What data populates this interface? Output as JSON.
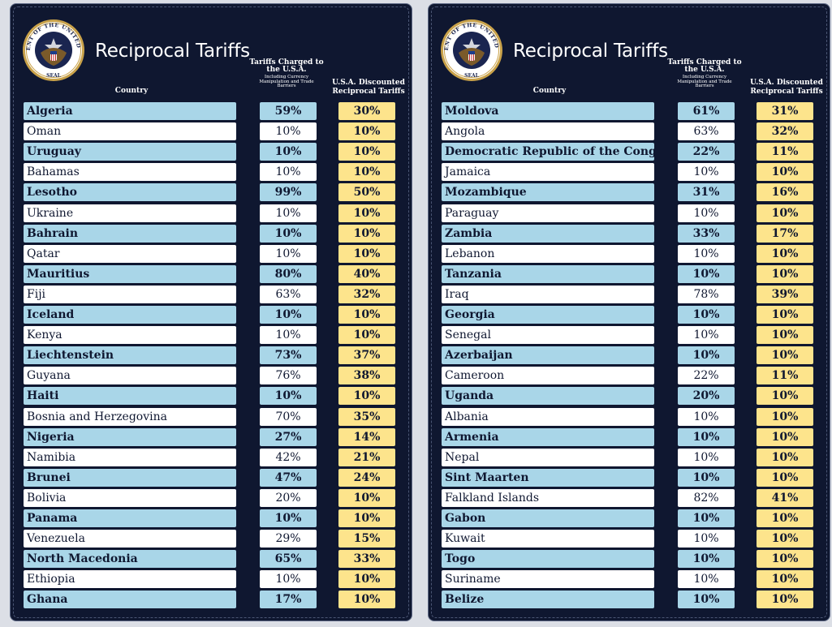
{
  "panels": [
    {
      "title": "Reciprocal Tariffs",
      "seal_text": "SEAL OF THE PRESIDENT OF THE UNITED STATES",
      "headers": {
        "country": "Country",
        "charged_main": "Tariffs Charged to the U.S.A.",
        "charged_sub": "Including Currency Manipulation and Trade Barriers",
        "discounted": "U.S.A. Discounted Reciprocal Tariffs"
      },
      "rows": [
        {
          "country": "Algeria",
          "charged": "59%",
          "discounted": "30%"
        },
        {
          "country": "Oman",
          "charged": "10%",
          "discounted": "10%"
        },
        {
          "country": "Uruguay",
          "charged": "10%",
          "discounted": "10%"
        },
        {
          "country": "Bahamas",
          "charged": "10%",
          "discounted": "10%"
        },
        {
          "country": "Lesotho",
          "charged": "99%",
          "discounted": "50%"
        },
        {
          "country": "Ukraine",
          "charged": "10%",
          "discounted": "10%"
        },
        {
          "country": "Bahrain",
          "charged": "10%",
          "discounted": "10%"
        },
        {
          "country": "Qatar",
          "charged": "10%",
          "discounted": "10%"
        },
        {
          "country": "Mauritius",
          "charged": "80%",
          "discounted": "40%"
        },
        {
          "country": "Fiji",
          "charged": "63%",
          "discounted": "32%"
        },
        {
          "country": "Iceland",
          "charged": "10%",
          "discounted": "10%"
        },
        {
          "country": "Kenya",
          "charged": "10%",
          "discounted": "10%"
        },
        {
          "country": "Liechtenstein",
          "charged": "73%",
          "discounted": "37%"
        },
        {
          "country": "Guyana",
          "charged": "76%",
          "discounted": "38%"
        },
        {
          "country": "Haiti",
          "charged": "10%",
          "discounted": "10%"
        },
        {
          "country": "Bosnia and Herzegovina",
          "charged": "70%",
          "discounted": "35%"
        },
        {
          "country": "Nigeria",
          "charged": "27%",
          "discounted": "14%"
        },
        {
          "country": "Namibia",
          "charged": "42%",
          "discounted": "21%"
        },
        {
          "country": "Brunei",
          "charged": "47%",
          "discounted": "24%"
        },
        {
          "country": "Bolivia",
          "charged": "20%",
          "discounted": "10%"
        },
        {
          "country": "Panama",
          "charged": "10%",
          "discounted": "10%"
        },
        {
          "country": "Venezuela",
          "charged": "29%",
          "discounted": "15%"
        },
        {
          "country": "North Macedonia",
          "charged": "65%",
          "discounted": "33%"
        },
        {
          "country": "Ethiopia",
          "charged": "10%",
          "discounted": "10%"
        },
        {
          "country": "Ghana",
          "charged": "17%",
          "discounted": "10%"
        }
      ]
    },
    {
      "title": "Reciprocal Tariffs",
      "seal_text": "SEAL OF THE PRESIDENT OF THE UNITED STATES",
      "headers": {
        "country": "Country",
        "charged_main": "Tariffs Charged to the U.S.A.",
        "charged_sub": "Including Currency Manipulation and Trade Barriers",
        "discounted": "U.S.A. Discounted Reciprocal Tariffs"
      },
      "rows": [
        {
          "country": "Moldova",
          "charged": "61%",
          "discounted": "31%"
        },
        {
          "country": "Angola",
          "charged": "63%",
          "discounted": "32%"
        },
        {
          "country": "Democratic Republic of the Congo",
          "charged": "22%",
          "discounted": "11%"
        },
        {
          "country": "Jamaica",
          "charged": "10%",
          "discounted": "10%"
        },
        {
          "country": "Mozambique",
          "charged": "31%",
          "discounted": "16%"
        },
        {
          "country": "Paraguay",
          "charged": "10%",
          "discounted": "10%"
        },
        {
          "country": "Zambia",
          "charged": "33%",
          "discounted": "17%"
        },
        {
          "country": "Lebanon",
          "charged": "10%",
          "discounted": "10%"
        },
        {
          "country": "Tanzania",
          "charged": "10%",
          "discounted": "10%"
        },
        {
          "country": "Iraq",
          "charged": "78%",
          "discounted": "39%"
        },
        {
          "country": "Georgia",
          "charged": "10%",
          "discounted": "10%"
        },
        {
          "country": "Senegal",
          "charged": "10%",
          "discounted": "10%"
        },
        {
          "country": "Azerbaijan",
          "charged": "10%",
          "discounted": "10%"
        },
        {
          "country": "Cameroon",
          "charged": "22%",
          "discounted": "11%"
        },
        {
          "country": "Uganda",
          "charged": "20%",
          "discounted": "10%"
        },
        {
          "country": "Albania",
          "charged": "10%",
          "discounted": "10%"
        },
        {
          "country": "Armenia",
          "charged": "10%",
          "discounted": "10%"
        },
        {
          "country": "Nepal",
          "charged": "10%",
          "discounted": "10%"
        },
        {
          "country": "Sint Maarten",
          "charged": "10%",
          "discounted": "10%"
        },
        {
          "country": "Falkland Islands",
          "charged": "82%",
          "discounted": "41%"
        },
        {
          "country": "Gabon",
          "charged": "10%",
          "discounted": "10%"
        },
        {
          "country": "Kuwait",
          "charged": "10%",
          "discounted": "10%"
        },
        {
          "country": "Togo",
          "charged": "10%",
          "discounted": "10%"
        },
        {
          "country": "Suriname",
          "charged": "10%",
          "discounted": "10%"
        },
        {
          "country": "Belize",
          "charged": "10%",
          "discounted": "10%"
        }
      ]
    }
  ],
  "colors": {
    "panel_bg": "#0f1730",
    "row_blue": "#a9d6e8",
    "row_white": "#ffffff",
    "discount_yellow": "#fde48c",
    "seal_gold": "#c9a24a"
  },
  "icons": [
    "presidential-seal-icon"
  ]
}
